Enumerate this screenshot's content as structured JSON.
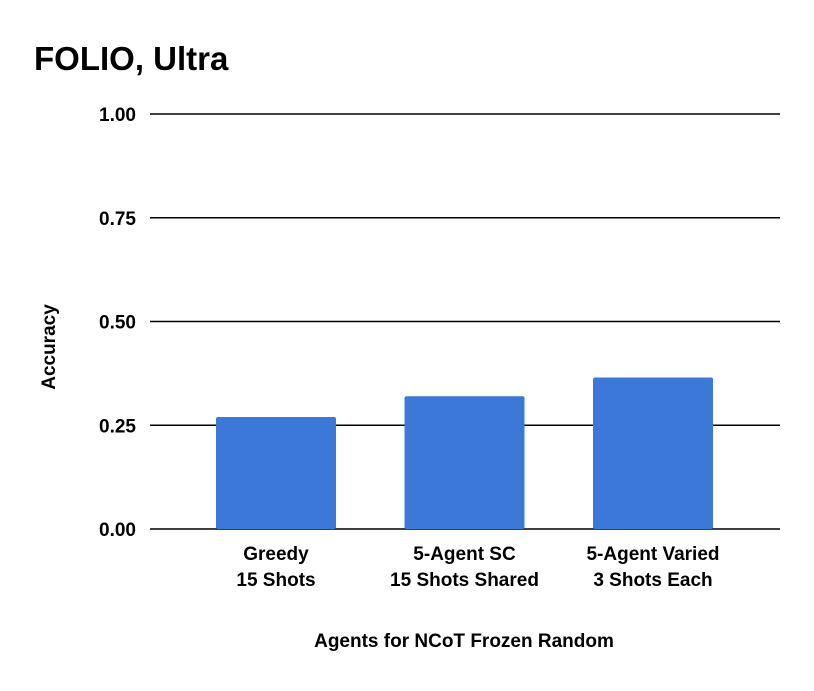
{
  "chart_data": {
    "type": "bar",
    "title": "FOLIO, Ultra",
    "xlabel": "Agents for NCoT Frozen Random",
    "ylabel": "Accuracy",
    "categories": [
      [
        "Greedy",
        "15 Shots"
      ],
      [
        "5-Agent SC",
        "15 Shots Shared"
      ],
      [
        "5-Agent Varied",
        "3 Shots Each"
      ]
    ],
    "values": [
      0.27,
      0.32,
      0.365
    ],
    "yticks": [
      "0.00",
      "0.25",
      "0.50",
      "0.75",
      "1.00"
    ],
    "ylim": [
      0,
      1
    ],
    "grid": true,
    "legend": "none",
    "bar_color": "#3c78d8"
  }
}
